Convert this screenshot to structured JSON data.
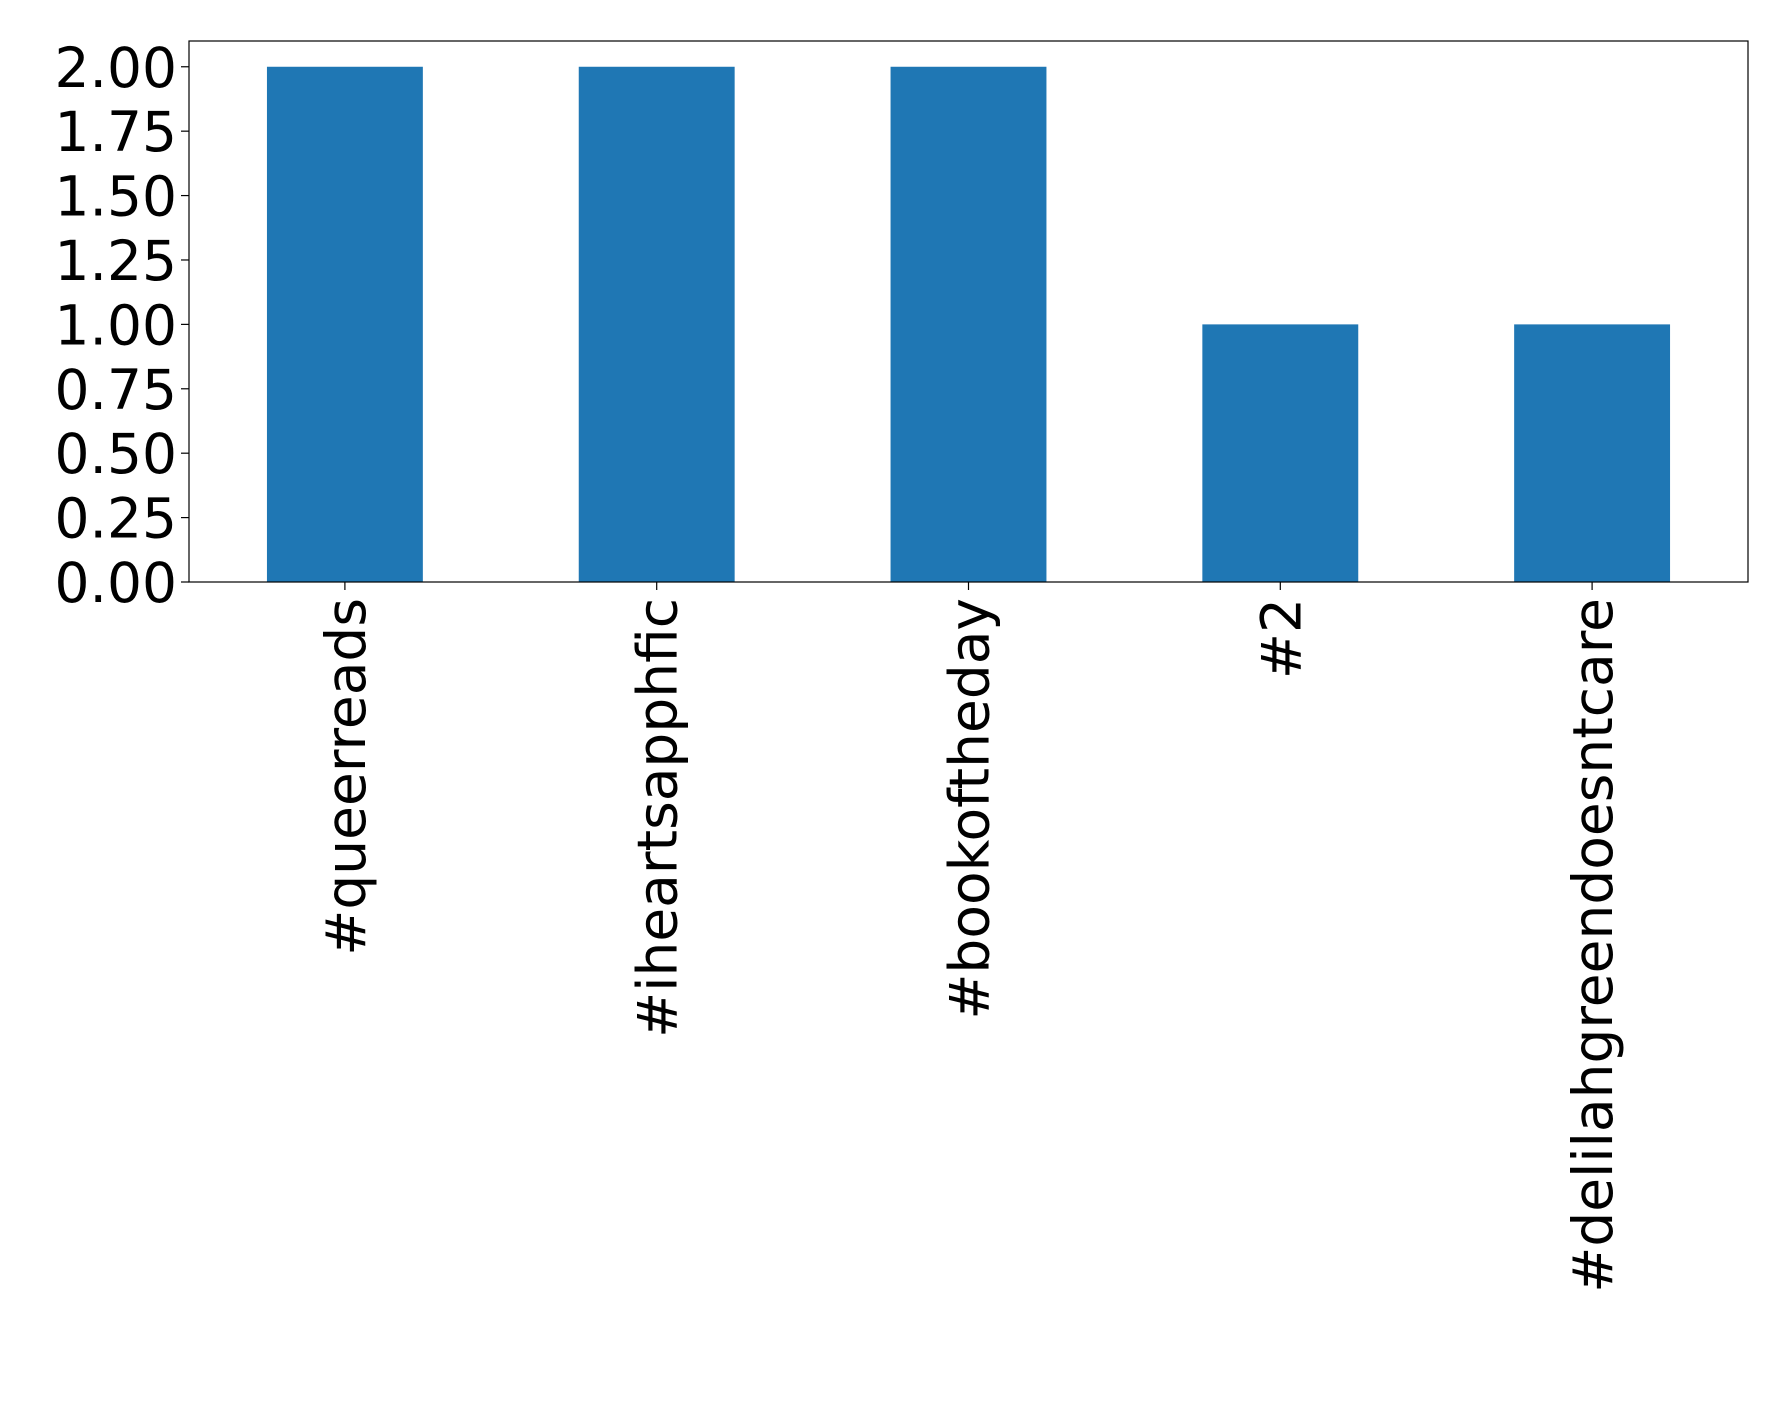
{
  "chart_data": {
    "type": "bar",
    "categories": [
      "#queerreads",
      "#iheartsapphfic",
      "#bookoftheday",
      "#2",
      "#delilahgreendoesntcare"
    ],
    "values": [
      2,
      2,
      2,
      1,
      1
    ],
    "color": "#1f77b4",
    "ylim": [
      0,
      2.1
    ],
    "yticks": [
      {
        "value": 0,
        "label": "0.00"
      },
      {
        "value": 0.25,
        "label": "0.25"
      },
      {
        "value": 0.5,
        "label": "0.50"
      },
      {
        "value": 0.75,
        "label": "0.75"
      },
      {
        "value": 1,
        "label": "1.00"
      },
      {
        "value": 1.25,
        "label": "1.25"
      },
      {
        "value": 1.5,
        "label": "1.50"
      },
      {
        "value": 1.75,
        "label": "1.75"
      },
      {
        "value": 2,
        "label": "2.00"
      }
    ],
    "grid": false
  }
}
